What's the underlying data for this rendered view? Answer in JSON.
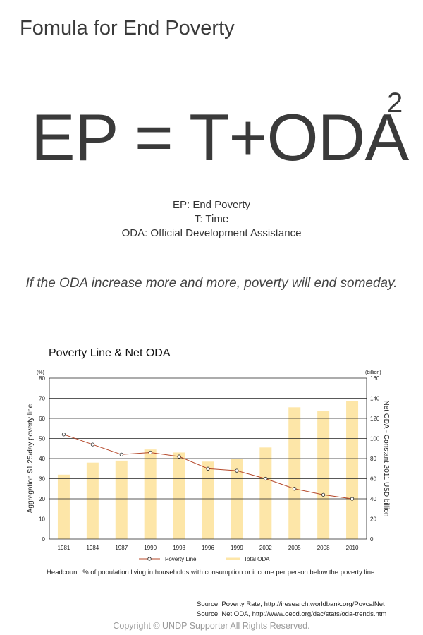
{
  "title": "Fomula for End Poverty",
  "formula": {
    "text": "EP = T+ODA",
    "exponent": "2"
  },
  "definitions": [
    "EP: End Poverty",
    "T: Time",
    "ODA: Official Development Assistance"
  ],
  "tagline": "If the ODA increase more and more, poverty will end someday.",
  "chart_data": {
    "type": "bar",
    "title": "Poverty Line & Net ODA",
    "categories": [
      "1981",
      "1984",
      "1987",
      "1990",
      "1993",
      "1996",
      "1999",
      "2002",
      "2005",
      "2008",
      "2010"
    ],
    "series": [
      {
        "name": "Total ODA",
        "type": "bar",
        "axis": "right",
        "values": [
          64,
          76,
          78,
          89,
          86,
          77,
          80,
          91,
          131,
          127,
          137
        ]
      },
      {
        "name": "Poverty Line",
        "type": "line",
        "axis": "left",
        "values": [
          52,
          47,
          42,
          43,
          41,
          35,
          34,
          30,
          25,
          22,
          20
        ]
      }
    ],
    "ylabel": "Aggregation $1.25/day poverty line",
    "yunit": "(%)",
    "ylim": [
      0,
      80
    ],
    "yticks": [
      "0",
      "10",
      "20",
      "30",
      "40",
      "50",
      "60",
      "70",
      "80"
    ],
    "y2label": "Net ODA - Constant 2011 USD billion",
    "y2unit": "(billion)",
    "y2lim": [
      0,
      160
    ],
    "y2ticks": [
      "0",
      "20",
      "40",
      "60",
      "80",
      "100",
      "120",
      "140",
      "160"
    ],
    "grid": true,
    "legend": "bottom",
    "colors": {
      "bar": "#fde6a8",
      "line": "#b5482a",
      "grid": "#222222"
    }
  },
  "note": "Headcount: % of population living in households with consumption or income per person below the poverty line.",
  "sources": [
    "Source: Poverty Rate, http://iresearch.worldbank.org/PovcalNet",
    "Source: Net ODA, http://www.oecd.org/dac/stats/oda-trends.htm"
  ],
  "copyright": "Copyright © UNDP Supporter   All Rights Reserved."
}
